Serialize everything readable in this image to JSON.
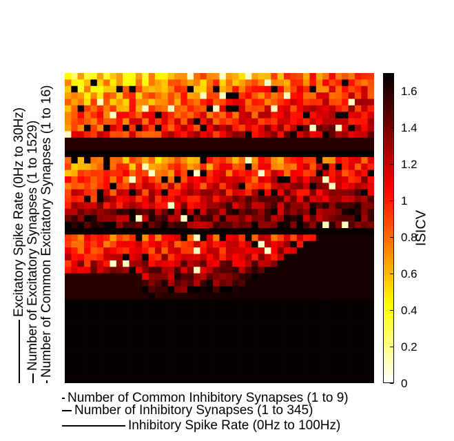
{
  "chart_data": {
    "type": "heatmap",
    "colorbar": {
      "label": "ISICV",
      "range": [
        0,
        1.7
      ],
      "ticks": [
        "0",
        "0.2",
        "0.4",
        "0.6",
        "0.8",
        "1",
        "1.2",
        "1.4",
        "1.6"
      ],
      "tick_values": [
        0,
        0.2,
        0.4,
        0.6,
        0.8,
        1.0,
        1.2,
        1.4,
        1.6
      ],
      "colormap": "hot"
    },
    "x_labels": [
      "Number of Common Inhibitory Synapses (1 to 9)",
      "Number of Inhibitory Synapses (1 to 345)",
      "Inhibitory Spike Rate (0Hz to 100Hz)"
    ],
    "y_labels": [
      "Excitatory Spike Rate (0Hz to 30Hz)",
      "Number of Excitatory Synapses (1 to 1529)",
      "Number of Common Excitatory Synapses (1 to 16)"
    ],
    "grid_size": [
      48,
      48
    ],
    "value_range": [
      0,
      1.7
    ]
  }
}
